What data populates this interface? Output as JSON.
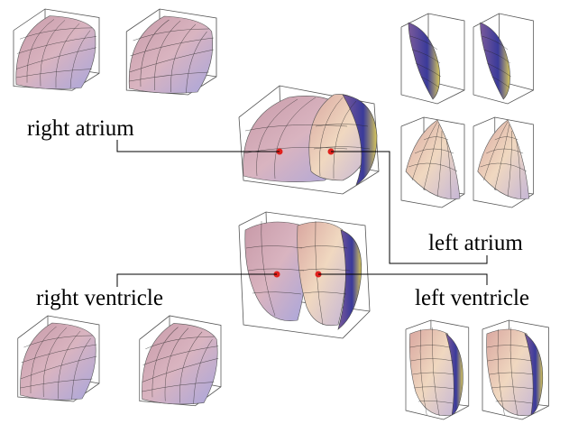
{
  "labels": {
    "right_atrium": "right atrium",
    "left_atrium": "left atrium",
    "right_ventricle": "right ventricle",
    "left_ventricle": "left ventricle"
  }
}
